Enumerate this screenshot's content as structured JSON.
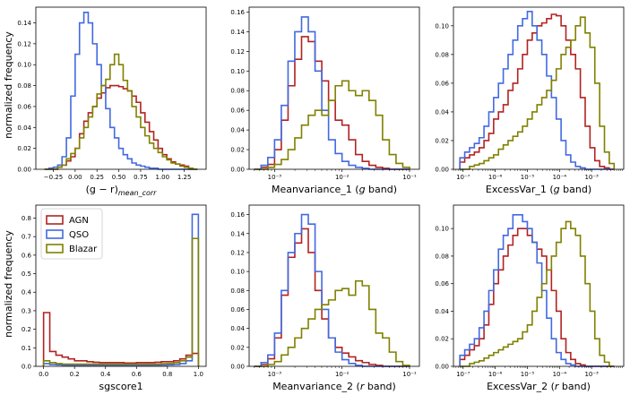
{
  "colors": {
    "AGN": "#b22222",
    "QSO": "#4169e1",
    "Blazar": "#808000"
  },
  "legend": [
    "AGN",
    "QSO",
    "Blazar"
  ],
  "ylabel": "normalized frequency",
  "chart_data": [
    {
      "type": "bar",
      "title": "",
      "xlabel_parts": [
        "(g − r)",
        "mean_corr"
      ],
      "xscale": "linear",
      "xlim": [
        -0.45,
        1.5
      ],
      "ylim": [
        0,
        0.155
      ],
      "xticks": [
        -0.25,
        0,
        0.25,
        0.5,
        0.75,
        1.0,
        1.25
      ],
      "xticklabels": [
        "−0.25",
        "0.00",
        "0.25",
        "0.50",
        "0.75",
        "1.00",
        "1.25"
      ],
      "yticks": [
        0,
        0.02,
        0.04,
        0.06,
        0.08,
        0.1,
        0.12,
        0.14
      ],
      "yticklabels": [
        "0.00",
        "0.02",
        "0.04",
        "0.06",
        "0.08",
        "0.10",
        "0.12",
        "0.14"
      ],
      "bin_edges": [
        -0.35,
        -0.3,
        -0.25,
        -0.2,
        -0.15,
        -0.1,
        -0.05,
        0.0,
        0.05,
        0.1,
        0.15,
        0.2,
        0.25,
        0.3,
        0.35,
        0.4,
        0.45,
        0.5,
        0.55,
        0.6,
        0.65,
        0.7,
        0.75,
        0.8,
        0.85,
        0.9,
        0.95,
        1.0,
        1.05,
        1.1,
        1.15,
        1.2,
        1.25,
        1.3,
        1.35,
        1.4
      ],
      "series": [
        {
          "name": "AGN",
          "values": [
            0,
            0,
            0,
            0.002,
            0.004,
            0.008,
            0.012,
            0.02,
            0.034,
            0.046,
            0.054,
            0.06,
            0.068,
            0.073,
            0.078,
            0.08,
            0.08,
            0.079,
            0.077,
            0.075,
            0.07,
            0.064,
            0.054,
            0.045,
            0.036,
            0.028,
            0.02,
            0.014,
            0.01,
            0.007,
            0.005,
            0.004,
            0.003,
            0,
            0
          ]
        },
        {
          "name": "QSO",
          "values": [
            0,
            0.001,
            0.002,
            0.004,
            0.012,
            0.03,
            0.07,
            0.11,
            0.14,
            0.15,
            0.14,
            0.12,
            0.1,
            0.08,
            0.058,
            0.04,
            0.03,
            0.02,
            0.014,
            0.01,
            0.006,
            0.004,
            0.003,
            0.002,
            0.001,
            0.001,
            0,
            0,
            0,
            0,
            0,
            0,
            0,
            0,
            0
          ]
        },
        {
          "name": "Blazar",
          "values": [
            0,
            0,
            0,
            0.002,
            0.004,
            0.01,
            0.015,
            0.02,
            0.03,
            0.04,
            0.05,
            0.06,
            0.072,
            0.08,
            0.086,
            0.1,
            0.11,
            0.1,
            0.085,
            0.075,
            0.06,
            0.05,
            0.04,
            0.032,
            0.025,
            0.02,
            0.016,
            0.012,
            0.009,
            0.006,
            0.005,
            0.003,
            0.002,
            0.001,
            0
          ]
        }
      ]
    },
    {
      "type": "bar",
      "title": "",
      "xlabel_parts": [
        "Meanvariance_1 (",
        "g",
        " band)"
      ],
      "xscale": "log",
      "xlim": [
        0.00042,
        0.14
      ],
      "ylim": [
        0,
        0.165
      ],
      "xticks": [
        0.001,
        0.01,
        0.1
      ],
      "xticklabels": [
        "10⁻³",
        "10⁻²",
        "10⁻¹"
      ],
      "yticks": [
        0,
        0.02,
        0.04,
        0.06,
        0.08,
        0.1,
        0.12,
        0.14,
        0.16
      ],
      "yticklabels": [
        "0.00",
        "0.02",
        "0.04",
        "0.06",
        "0.08",
        "0.10",
        "0.12",
        "0.14",
        "0.16"
      ],
      "bin_edges": [
        0.0005,
        0.000631,
        0.000794,
        0.001,
        0.001259,
        0.001585,
        0.001995,
        0.002512,
        0.003162,
        0.003981,
        0.005012,
        0.00631,
        0.007943,
        0.01,
        0.012589,
        0.015849,
        0.019953,
        0.025119,
        0.031623,
        0.039811,
        0.050119,
        0.063096,
        0.079433,
        0.1
      ],
      "series": [
        {
          "name": "AGN",
          "values": [
            0,
            0.002,
            0.005,
            0.02,
            0.05,
            0.085,
            0.112,
            0.135,
            0.13,
            0.11,
            0.09,
            0.07,
            0.05,
            0.045,
            0.03,
            0.015,
            0.008,
            0.004,
            0.002,
            0.001,
            0,
            0,
            0
          ]
        },
        {
          "name": "QSO",
          "values": [
            0,
            0.004,
            0.012,
            0.03,
            0.065,
            0.11,
            0.14,
            0.155,
            0.14,
            0.1,
            0.06,
            0.03,
            0.016,
            0.008,
            0.004,
            0.002,
            0.001,
            0,
            0,
            0,
            0,
            0,
            0
          ]
        },
        {
          "name": "Blazar",
          "values": [
            0,
            0,
            0.002,
            0.005,
            0.01,
            0.02,
            0.032,
            0.045,
            0.055,
            0.06,
            0.055,
            0.07,
            0.085,
            0.09,
            0.08,
            0.075,
            0.08,
            0.07,
            0.055,
            0.03,
            0.015,
            0.006,
            0.002
          ]
        }
      ]
    },
    {
      "type": "bar",
      "title": "",
      "xlabel_parts": [
        "ExcessVar_1 (",
        "g",
        " band)"
      ],
      "xscale": "log",
      "xlim": [
        5e-08,
        0.01
      ],
      "ylim": [
        0,
        0.113
      ],
      "xticks": [
        1e-07,
        1e-06,
        1e-05,
        0.0001,
        0.001
      ],
      "xticklabels": [
        "10⁻⁷",
        "10⁻⁶",
        "10⁻⁵",
        "10⁻⁴",
        "10⁻³"
      ],
      "yticks": [
        0,
        0.02,
        0.04,
        0.06,
        0.08,
        0.1
      ],
      "yticklabels": [
        "0.00",
        "0.02",
        "0.04",
        "0.06",
        "0.08",
        "0.10"
      ],
      "bin_edges": [
        7.943e-08,
        1.122e-07,
        1.585e-07,
        2.239e-07,
        3.162e-07,
        4.467e-07,
        6.31e-07,
        8.913e-07,
        1.259e-06,
        1.778e-06,
        2.512e-06,
        3.548e-06,
        5.012e-06,
        7.079e-06,
        1e-05,
        1.413e-05,
        1.995e-05,
        2.818e-05,
        3.981e-05,
        5.623e-05,
        7.943e-05,
        0.0001122,
        0.0001585,
        0.0002239,
        0.0003162,
        0.0004467,
        0.000631,
        0.0008913,
        0.001259,
        0.001778,
        0.002512,
        0.003548,
        0.005012
      ],
      "series": [
        {
          "name": "AGN",
          "values": [
            0.005,
            0.008,
            0.01,
            0.012,
            0.015,
            0.02,
            0.025,
            0.035,
            0.04,
            0.045,
            0.055,
            0.06,
            0.07,
            0.08,
            0.09,
            0.095,
            0.1,
            0.102,
            0.105,
            0.108,
            0.107,
            0.1,
            0.09,
            0.08,
            0.07,
            0.05,
            0.03,
            0.015,
            0.006,
            0.002,
            0.001,
            0
          ]
        },
        {
          "name": "QSO",
          "values": [
            0.008,
            0.012,
            0.015,
            0.018,
            0.022,
            0.03,
            0.04,
            0.05,
            0.06,
            0.07,
            0.08,
            0.09,
            0.1,
            0.105,
            0.11,
            0.1,
            0.09,
            0.08,
            0.065,
            0.05,
            0.035,
            0.02,
            0.01,
            0.005,
            0.002,
            0.001,
            0,
            0,
            0,
            0,
            0,
            0
          ]
        },
        {
          "name": "Blazar",
          "values": [
            0,
            0,
            0.002,
            0.003,
            0.004,
            0.006,
            0.008,
            0.01,
            0.014,
            0.017,
            0.02,
            0.023,
            0.026,
            0.03,
            0.035,
            0.04,
            0.045,
            0.05,
            0.055,
            0.062,
            0.07,
            0.08,
            0.085,
            0.09,
            0.1,
            0.106,
            0.095,
            0.085,
            0.06,
            0.03,
            0.012,
            0.004
          ]
        }
      ]
    },
    {
      "type": "bar",
      "title": "",
      "xlabel_parts": [
        "sgscore1"
      ],
      "xscale": "linear",
      "xlim": [
        -0.05,
        1.05
      ],
      "ylim": [
        0,
        0.87
      ],
      "xticks": [
        0,
        0.2,
        0.4,
        0.6,
        0.8,
        1.0
      ],
      "xticklabels": [
        "0.0",
        "0.2",
        "0.4",
        "0.6",
        "0.8",
        "1.0"
      ],
      "yticks": [
        0,
        0.1,
        0.2,
        0.3,
        0.4,
        0.5,
        0.6,
        0.7,
        0.8
      ],
      "yticklabels": [
        "0.0",
        "0.1",
        "0.2",
        "0.3",
        "0.4",
        "0.5",
        "0.6",
        "0.7",
        "0.8"
      ],
      "bin_edges": [
        0.0,
        0.04,
        0.08,
        0.12,
        0.16,
        0.2,
        0.24,
        0.28,
        0.32,
        0.36,
        0.4,
        0.44,
        0.48,
        0.52,
        0.56,
        0.6,
        0.64,
        0.68,
        0.72,
        0.76,
        0.8,
        0.84,
        0.88,
        0.92,
        0.96,
        1.0
      ],
      "series": [
        {
          "name": "AGN",
          "values": [
            0.29,
            0.08,
            0.06,
            0.05,
            0.04,
            0.03,
            0.03,
            0.025,
            0.022,
            0.02,
            0.02,
            0.02,
            0.02,
            0.018,
            0.018,
            0.02,
            0.02,
            0.02,
            0.022,
            0.025,
            0.025,
            0.03,
            0.04,
            0.06,
            0.07
          ]
        },
        {
          "name": "QSO",
          "values": [
            0.015,
            0.01,
            0.008,
            0.006,
            0.005,
            0.005,
            0.005,
            0.005,
            0.005,
            0.005,
            0.005,
            0.005,
            0.005,
            0.005,
            0.005,
            0.005,
            0.005,
            0.006,
            0.006,
            0.007,
            0.008,
            0.01,
            0.015,
            0.03,
            0.82
          ]
        },
        {
          "name": "Blazar",
          "values": [
            0.03,
            0.02,
            0.015,
            0.012,
            0.012,
            0.012,
            0.012,
            0.012,
            0.012,
            0.012,
            0.012,
            0.012,
            0.012,
            0.012,
            0.012,
            0.012,
            0.012,
            0.012,
            0.012,
            0.014,
            0.015,
            0.02,
            0.03,
            0.05,
            0.69
          ]
        }
      ]
    },
    {
      "type": "bar",
      "title": "",
      "xlabel_parts": [
        "Meanvariance_2 (",
        "r",
        " band)"
      ],
      "xscale": "log",
      "xlim": [
        0.00042,
        0.14
      ],
      "ylim": [
        0,
        0.17
      ],
      "xticks": [
        0.001,
        0.01,
        0.1
      ],
      "xticklabels": [
        "10⁻³",
        "10⁻²",
        "10⁻¹"
      ],
      "yticks": [
        0,
        0.02,
        0.04,
        0.06,
        0.08,
        0.1,
        0.12,
        0.14,
        0.16
      ],
      "yticklabels": [
        "0.00",
        "0.02",
        "0.04",
        "0.06",
        "0.08",
        "0.10",
        "0.12",
        "0.14",
        "0.16"
      ],
      "bin_edges": [
        0.0005,
        0.000631,
        0.000794,
        0.001,
        0.001259,
        0.001585,
        0.001995,
        0.002512,
        0.003162,
        0.003981,
        0.005012,
        0.00631,
        0.007943,
        0.01,
        0.012589,
        0.015849,
        0.019953,
        0.025119,
        0.031623,
        0.039811,
        0.050119,
        0.063096,
        0.079433,
        0.1
      ],
      "series": [
        {
          "name": "AGN",
          "values": [
            0,
            0.002,
            0.008,
            0.03,
            0.075,
            0.115,
            0.13,
            0.145,
            0.12,
            0.08,
            0.05,
            0.03,
            0.02,
            0.014,
            0.01,
            0.006,
            0.004,
            0.002,
            0.001,
            0,
            0,
            0,
            0
          ]
        },
        {
          "name": "QSO",
          "values": [
            0,
            0.004,
            0.012,
            0.035,
            0.08,
            0.12,
            0.14,
            0.16,
            0.15,
            0.1,
            0.06,
            0.03,
            0.015,
            0.007,
            0.003,
            0.001,
            0,
            0,
            0,
            0,
            0,
            0,
            0
          ]
        },
        {
          "name": "Blazar",
          "values": [
            0,
            0,
            0.002,
            0.005,
            0.012,
            0.02,
            0.03,
            0.04,
            0.05,
            0.06,
            0.065,
            0.07,
            0.08,
            0.082,
            0.075,
            0.09,
            0.085,
            0.06,
            0.035,
            0.03,
            0.015,
            0.005,
            0.001
          ]
        }
      ]
    },
    {
      "type": "bar",
      "title": "",
      "xlabel_parts": [
        "ExcessVar_2 (",
        "r",
        " band)"
      ],
      "xscale": "log",
      "xlim": [
        5e-08,
        0.01
      ],
      "ylim": [
        0,
        0.117
      ],
      "xticks": [
        1e-07,
        1e-06,
        1e-05,
        0.0001,
        0.001
      ],
      "xticklabels": [
        "10⁻⁷",
        "10⁻⁶",
        "10⁻⁵",
        "10⁻⁴",
        "10⁻³"
      ],
      "yticks": [
        0,
        0.02,
        0.04,
        0.06,
        0.08,
        0.1
      ],
      "yticklabels": [
        "0.00",
        "0.02",
        "0.04",
        "0.06",
        "0.08",
        "0.10"
      ],
      "bin_edges": [
        7.943e-08,
        1.122e-07,
        1.585e-07,
        2.239e-07,
        3.162e-07,
        4.467e-07,
        6.31e-07,
        8.913e-07,
        1.259e-06,
        1.778e-06,
        2.512e-06,
        3.548e-06,
        5.012e-06,
        7.079e-06,
        1e-05,
        1.413e-05,
        1.995e-05,
        2.818e-05,
        3.981e-05,
        5.623e-05,
        7.943e-05,
        0.0001122,
        0.0001585,
        0.0002239,
        0.0003162,
        0.0004467,
        0.000631,
        0.0008913,
        0.001259,
        0.001778,
        0.002512,
        0.003548,
        0.005012
      ],
      "series": [
        {
          "name": "AGN",
          "values": [
            0.005,
            0.008,
            0.012,
            0.015,
            0.02,
            0.03,
            0.045,
            0.06,
            0.07,
            0.08,
            0.088,
            0.095,
            0.1,
            0.1,
            0.095,
            0.09,
            0.085,
            0.08,
            0.07,
            0.055,
            0.04,
            0.02,
            0.01,
            0.005,
            0.002,
            0.001,
            0,
            0,
            0,
            0,
            0,
            0
          ]
        },
        {
          "name": "QSO",
          "values": [
            0.008,
            0.012,
            0.016,
            0.02,
            0.028,
            0.04,
            0.055,
            0.07,
            0.085,
            0.095,
            0.1,
            0.11,
            0.11,
            0.105,
            0.1,
            0.09,
            0.075,
            0.055,
            0.035,
            0.02,
            0.01,
            0.005,
            0.002,
            0.001,
            0,
            0,
            0,
            0,
            0,
            0,
            0,
            0
          ]
        },
        {
          "name": "Blazar",
          "values": [
            0,
            0,
            0.002,
            0.003,
            0.004,
            0.006,
            0.008,
            0.01,
            0.012,
            0.014,
            0.016,
            0.018,
            0.02,
            0.025,
            0.03,
            0.04,
            0.05,
            0.06,
            0.07,
            0.08,
            0.09,
            0.1,
            0.105,
            0.1,
            0.095,
            0.08,
            0.06,
            0.04,
            0.02,
            0.008,
            0.003,
            0
          ]
        }
      ]
    }
  ]
}
